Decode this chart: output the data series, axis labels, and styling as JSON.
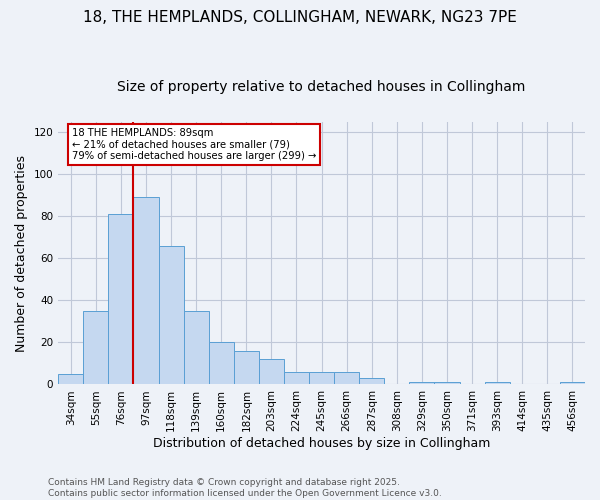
{
  "title1": "18, THE HEMPLANDS, COLLINGHAM, NEWARK, NG23 7PE",
  "title2": "Size of property relative to detached houses in Collingham",
  "xlabel": "Distribution of detached houses by size in Collingham",
  "ylabel": "Number of detached properties",
  "categories": [
    "34sqm",
    "55sqm",
    "76sqm",
    "97sqm",
    "118sqm",
    "139sqm",
    "160sqm",
    "182sqm",
    "203sqm",
    "224sqm",
    "245sqm",
    "266sqm",
    "287sqm",
    "308sqm",
    "329sqm",
    "350sqm",
    "371sqm",
    "393sqm",
    "414sqm",
    "435sqm",
    "456sqm"
  ],
  "values": [
    5,
    35,
    81,
    89,
    66,
    35,
    20,
    16,
    12,
    6,
    6,
    6,
    3,
    0,
    1,
    1,
    0,
    1,
    0,
    0,
    1
  ],
  "bar_color": "#c5d8f0",
  "bar_edge_color": "#5a9fd4",
  "red_line_x": 2.5,
  "annotation_text": "18 THE HEMPLANDS: 89sqm\n← 21% of detached houses are smaller (79)\n79% of semi-detached houses are larger (299) →",
  "annotation_box_color": "#ffffff",
  "annotation_box_edge_color": "#cc0000",
  "property_line_color": "#cc0000",
  "ylim": [
    0,
    125
  ],
  "yticks": [
    0,
    20,
    40,
    60,
    80,
    100,
    120
  ],
  "grid_color": "#c0c8d8",
  "background_color": "#eef2f8",
  "footer": "Contains HM Land Registry data © Crown copyright and database right 2025.\nContains public sector information licensed under the Open Government Licence v3.0.",
  "title_fontsize": 11,
  "subtitle_fontsize": 10,
  "axis_label_fontsize": 9,
  "tick_fontsize": 7.5,
  "footer_fontsize": 6.5
}
